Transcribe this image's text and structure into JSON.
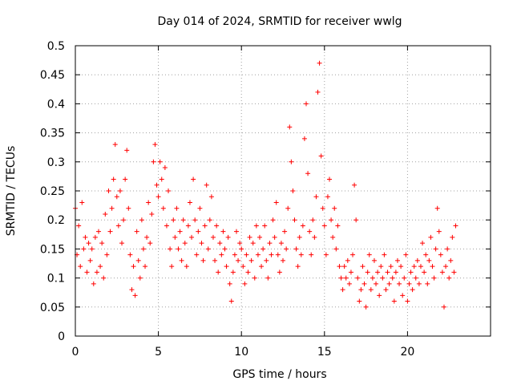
{
  "chart_data": {
    "type": "scatter",
    "title": "Day 014 of 2024, SRMTID for receiver wwlg",
    "xlabel": "GPS time / hours",
    "ylabel": "SRMTID / TECUs",
    "xlim": [
      0,
      25
    ],
    "ylim": [
      0,
      0.5
    ],
    "xticks": [
      0,
      5,
      10,
      15,
      20
    ],
    "xtick_labels": [
      "0",
      "5",
      "10",
      "15",
      "20"
    ],
    "yticks": [
      0,
      0.05,
      0.1,
      0.15,
      0.2,
      0.25,
      0.3,
      0.35,
      0.4,
      0.45,
      0.5
    ],
    "ytick_labels": [
      "0",
      "0.05",
      "0.1",
      "0.15",
      "0.2",
      "0.25",
      "0.3",
      "0.35",
      "0.4",
      "0.45",
      "0.5"
    ],
    "grid": true,
    "marker": "+",
    "color": "#ff0000",
    "series": [
      {
        "name": "SRMTID",
        "points": [
          [
            0.0,
            0.22
          ],
          [
            0.1,
            0.14
          ],
          [
            0.2,
            0.19
          ],
          [
            0.3,
            0.12
          ],
          [
            0.4,
            0.23
          ],
          [
            0.5,
            0.15
          ],
          [
            0.6,
            0.17
          ],
          [
            0.7,
            0.11
          ],
          [
            0.8,
            0.16
          ],
          [
            0.9,
            0.13
          ],
          [
            1.0,
            0.15
          ],
          [
            1.1,
            0.09
          ],
          [
            1.2,
            0.17
          ],
          [
            1.3,
            0.11
          ],
          [
            1.4,
            0.18
          ],
          [
            1.5,
            0.12
          ],
          [
            1.6,
            0.16
          ],
          [
            1.7,
            0.1
          ],
          [
            1.8,
            0.21
          ],
          [
            1.9,
            0.14
          ],
          [
            2.0,
            0.25
          ],
          [
            2.1,
            0.18
          ],
          [
            2.2,
            0.22
          ],
          [
            2.3,
            0.27
          ],
          [
            2.4,
            0.33
          ],
          [
            2.5,
            0.24
          ],
          [
            2.6,
            0.19
          ],
          [
            2.7,
            0.25
          ],
          [
            2.8,
            0.16
          ],
          [
            2.9,
            0.2
          ],
          [
            3.0,
            0.27
          ],
          [
            3.1,
            0.32
          ],
          [
            3.2,
            0.22
          ],
          [
            3.3,
            0.14
          ],
          [
            3.4,
            0.08
          ],
          [
            3.5,
            0.12
          ],
          [
            3.6,
            0.07
          ],
          [
            3.7,
            0.18
          ],
          [
            3.8,
            0.13
          ],
          [
            3.9,
            0.1
          ],
          [
            4.0,
            0.2
          ],
          [
            4.1,
            0.15
          ],
          [
            4.2,
            0.12
          ],
          [
            4.3,
            0.17
          ],
          [
            4.4,
            0.23
          ],
          [
            4.5,
            0.16
          ],
          [
            4.6,
            0.21
          ],
          [
            4.7,
            0.3
          ],
          [
            4.8,
            0.33
          ],
          [
            4.9,
            0.26
          ],
          [
            5.0,
            0.24
          ],
          [
            5.1,
            0.3
          ],
          [
            5.2,
            0.27
          ],
          [
            5.3,
            0.22
          ],
          [
            5.4,
            0.29
          ],
          [
            5.5,
            0.19
          ],
          [
            5.6,
            0.25
          ],
          [
            5.7,
            0.15
          ],
          [
            5.8,
            0.12
          ],
          [
            5.9,
            0.2
          ],
          [
            6.0,
            0.17
          ],
          [
            6.1,
            0.22
          ],
          [
            6.2,
            0.15
          ],
          [
            6.3,
            0.18
          ],
          [
            6.4,
            0.13
          ],
          [
            6.5,
            0.2
          ],
          [
            6.6,
            0.16
          ],
          [
            6.7,
            0.12
          ],
          [
            6.8,
            0.19
          ],
          [
            6.9,
            0.23
          ],
          [
            7.0,
            0.17
          ],
          [
            7.1,
            0.27
          ],
          [
            7.2,
            0.2
          ],
          [
            7.3,
            0.14
          ],
          [
            7.4,
            0.18
          ],
          [
            7.5,
            0.22
          ],
          [
            7.6,
            0.16
          ],
          [
            7.7,
            0.13
          ],
          [
            7.8,
            0.19
          ],
          [
            7.9,
            0.26
          ],
          [
            8.0,
            0.15
          ],
          [
            8.1,
            0.2
          ],
          [
            8.2,
            0.24
          ],
          [
            8.3,
            0.17
          ],
          [
            8.4,
            0.13
          ],
          [
            8.5,
            0.19
          ],
          [
            8.6,
            0.11
          ],
          [
            8.7,
            0.16
          ],
          [
            8.8,
            0.14
          ],
          [
            8.9,
            0.18
          ],
          [
            9.0,
            0.15
          ],
          [
            9.1,
            0.12
          ],
          [
            9.2,
            0.17
          ],
          [
            9.3,
            0.09
          ],
          [
            9.4,
            0.06
          ],
          [
            9.5,
            0.11
          ],
          [
            9.6,
            0.14
          ],
          [
            9.7,
            0.18
          ],
          [
            9.8,
            0.13
          ],
          [
            9.9,
            0.16
          ],
          [
            10.0,
            0.15
          ],
          [
            10.1,
            0.12
          ],
          [
            10.2,
            0.09
          ],
          [
            10.3,
            0.14
          ],
          [
            10.4,
            0.11
          ],
          [
            10.5,
            0.17
          ],
          [
            10.6,
            0.13
          ],
          [
            10.7,
            0.16
          ],
          [
            10.8,
            0.1
          ],
          [
            10.9,
            0.19
          ],
          [
            11.0,
            0.14
          ],
          [
            11.1,
            0.17
          ],
          [
            11.2,
            0.12
          ],
          [
            11.3,
            0.15
          ],
          [
            11.4,
            0.19
          ],
          [
            11.5,
            0.13
          ],
          [
            11.6,
            0.1
          ],
          [
            11.7,
            0.16
          ],
          [
            11.8,
            0.14
          ],
          [
            11.9,
            0.2
          ],
          [
            12.0,
            0.17
          ],
          [
            12.1,
            0.23
          ],
          [
            12.2,
            0.14
          ],
          [
            12.3,
            0.11
          ],
          [
            12.4,
            0.16
          ],
          [
            12.5,
            0.13
          ],
          [
            12.6,
            0.18
          ],
          [
            12.7,
            0.15
          ],
          [
            12.8,
            0.22
          ],
          [
            12.9,
            0.36
          ],
          [
            13.0,
            0.3
          ],
          [
            13.1,
            0.25
          ],
          [
            13.2,
            0.2
          ],
          [
            13.3,
            0.15
          ],
          [
            13.4,
            0.12
          ],
          [
            13.5,
            0.17
          ],
          [
            13.6,
            0.14
          ],
          [
            13.7,
            0.19
          ],
          [
            13.8,
            0.34
          ],
          [
            13.9,
            0.4
          ],
          [
            14.0,
            0.28
          ],
          [
            14.1,
            0.18
          ],
          [
            14.2,
            0.14
          ],
          [
            14.3,
            0.2
          ],
          [
            14.4,
            0.17
          ],
          [
            14.5,
            0.24
          ],
          [
            14.6,
            0.42
          ],
          [
            14.7,
            0.47
          ],
          [
            14.8,
            0.31
          ],
          [
            14.9,
            0.22
          ],
          [
            15.0,
            0.19
          ],
          [
            15.1,
            0.14
          ],
          [
            15.2,
            0.24
          ],
          [
            15.3,
            0.27
          ],
          [
            15.4,
            0.2
          ],
          [
            15.5,
            0.17
          ],
          [
            15.6,
            0.22
          ],
          [
            15.7,
            0.15
          ],
          [
            15.8,
            0.19
          ],
          [
            15.9,
            0.12
          ],
          [
            16.0,
            0.1
          ],
          [
            16.1,
            0.08
          ],
          [
            16.2,
            0.12
          ],
          [
            16.3,
            0.1
          ],
          [
            16.4,
            0.13
          ],
          [
            16.5,
            0.09
          ],
          [
            16.6,
            0.11
          ],
          [
            16.7,
            0.14
          ],
          [
            16.8,
            0.26
          ],
          [
            16.9,
            0.2
          ],
          [
            17.0,
            0.1
          ],
          [
            17.1,
            0.06
          ],
          [
            17.2,
            0.08
          ],
          [
            17.3,
            0.12
          ],
          [
            17.4,
            0.09
          ],
          [
            17.5,
            0.05
          ],
          [
            17.6,
            0.11
          ],
          [
            17.7,
            0.14
          ],
          [
            17.8,
            0.08
          ],
          [
            17.9,
            0.1
          ],
          [
            18.0,
            0.13
          ],
          [
            18.1,
            0.09
          ],
          [
            18.2,
            0.11
          ],
          [
            18.3,
            0.07
          ],
          [
            18.4,
            0.12
          ],
          [
            18.5,
            0.1
          ],
          [
            18.6,
            0.14
          ],
          [
            18.7,
            0.08
          ],
          [
            18.8,
            0.11
          ],
          [
            18.9,
            0.09
          ],
          [
            19.0,
            0.12
          ],
          [
            19.1,
            0.1
          ],
          [
            19.2,
            0.06
          ],
          [
            19.3,
            0.11
          ],
          [
            19.4,
            0.13
          ],
          [
            19.5,
            0.09
          ],
          [
            19.6,
            0.12
          ],
          [
            19.7,
            0.07
          ],
          [
            19.8,
            0.1
          ],
          [
            19.9,
            0.14
          ],
          [
            20.0,
            0.06
          ],
          [
            20.1,
            0.09
          ],
          [
            20.2,
            0.11
          ],
          [
            20.3,
            0.08
          ],
          [
            20.4,
            0.12
          ],
          [
            20.5,
            0.1
          ],
          [
            20.6,
            0.13
          ],
          [
            20.7,
            0.09
          ],
          [
            20.8,
            0.12
          ],
          [
            20.9,
            0.16
          ],
          [
            21.0,
            0.11
          ],
          [
            21.1,
            0.14
          ],
          [
            21.2,
            0.09
          ],
          [
            21.3,
            0.13
          ],
          [
            21.4,
            0.17
          ],
          [
            21.5,
            0.12
          ],
          [
            21.6,
            0.1
          ],
          [
            21.7,
            0.15
          ],
          [
            21.8,
            0.22
          ],
          [
            21.9,
            0.18
          ],
          [
            22.0,
            0.14
          ],
          [
            22.1,
            0.11
          ],
          [
            22.2,
            0.05
          ],
          [
            22.3,
            0.12
          ],
          [
            22.4,
            0.15
          ],
          [
            22.5,
            0.1
          ],
          [
            22.6,
            0.13
          ],
          [
            22.7,
            0.17
          ],
          [
            22.8,
            0.11
          ],
          [
            22.9,
            0.19
          ]
        ]
      }
    ]
  }
}
